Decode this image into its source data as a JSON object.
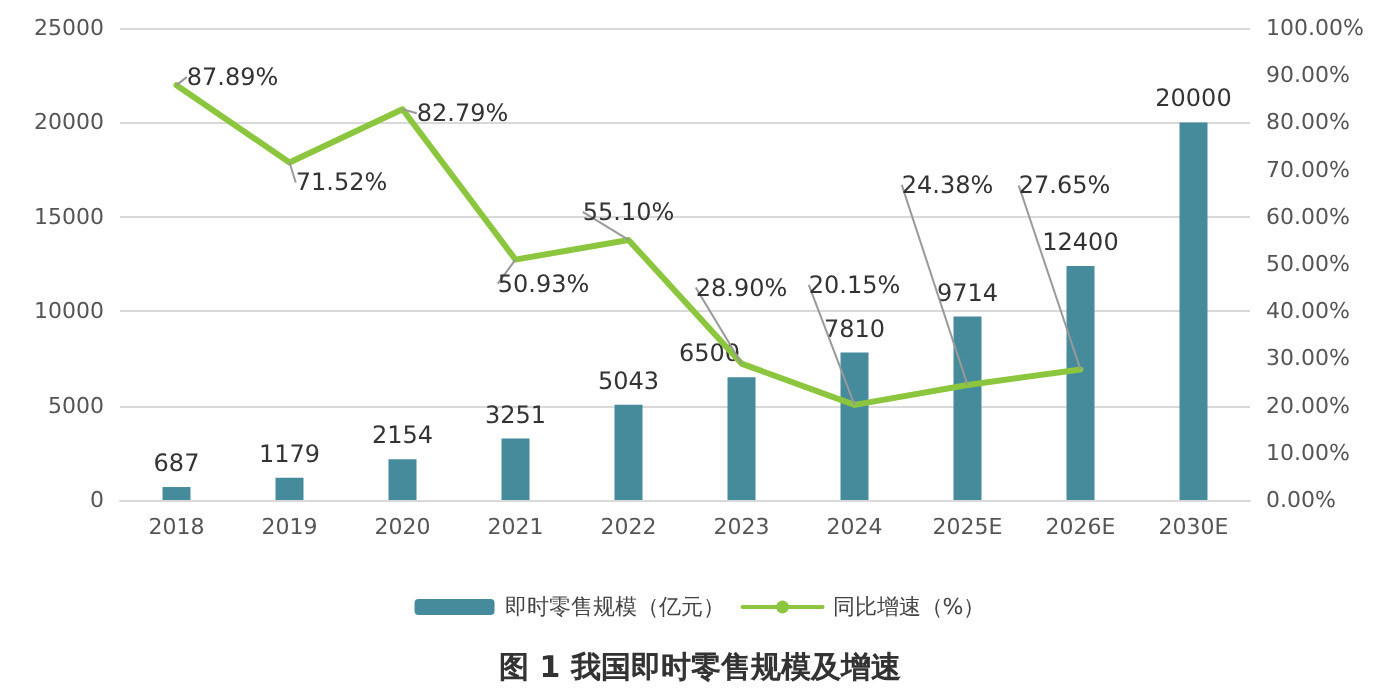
{
  "chart_data": {
    "type": "bar",
    "title": "图 1 我国即时零售规模及增速",
    "categories": [
      "2018",
      "2019",
      "2020",
      "2021",
      "2022",
      "2023",
      "2024",
      "2025E",
      "2026E",
      "2030E"
    ],
    "series": [
      {
        "name": "即时零售规模（亿元）",
        "color": "#468b9b",
        "values": [
          687,
          1179,
          2154,
          3251,
          5043,
          6500,
          7810,
          9714,
          12400,
          20000
        ],
        "value_labels": [
          "687",
          "1179",
          "2154",
          "3251",
          "5043",
          "6500",
          "7810",
          "9714",
          "12400",
          "20000"
        ]
      },
      {
        "name": "同比增速（%）",
        "type": "line",
        "axis": "y2",
        "color": "#8cc63f",
        "values": [
          87.89,
          71.52,
          82.79,
          50.93,
          55.1,
          28.9,
          20.15,
          24.38,
          27.65,
          null
        ],
        "value_labels": [
          "87.89%",
          "71.52%",
          "82.79%",
          "50.93%",
          "55.10%",
          "28.90%",
          "20.15%",
          "24.38%",
          "27.65%",
          null
        ]
      }
    ],
    "ylim": [
      0,
      25000
    ],
    "yticks": [
      0,
      5000,
      10000,
      15000,
      20000,
      25000
    ],
    "y2lim": [
      0,
      100
    ],
    "y2ticks": [
      {
        "value": 0,
        "label": "0.00%"
      },
      {
        "value": 10,
        "label": "10.00%"
      },
      {
        "value": 20,
        "label": "20.00%"
      },
      {
        "value": 30,
        "label": "30.00%"
      },
      {
        "value": 40,
        "label": "40.00%"
      },
      {
        "value": 50,
        "label": "50.00%"
      },
      {
        "value": 60,
        "label": "60.00%"
      },
      {
        "value": 70,
        "label": "70.00%"
      },
      {
        "value": 80,
        "label": "80.00%"
      },
      {
        "value": 90,
        "label": "90.00%"
      },
      {
        "value": 100,
        "label": "100.00%"
      }
    ],
    "grid": "y",
    "legend": "bottom",
    "marker": "none",
    "line_style": "solid"
  }
}
